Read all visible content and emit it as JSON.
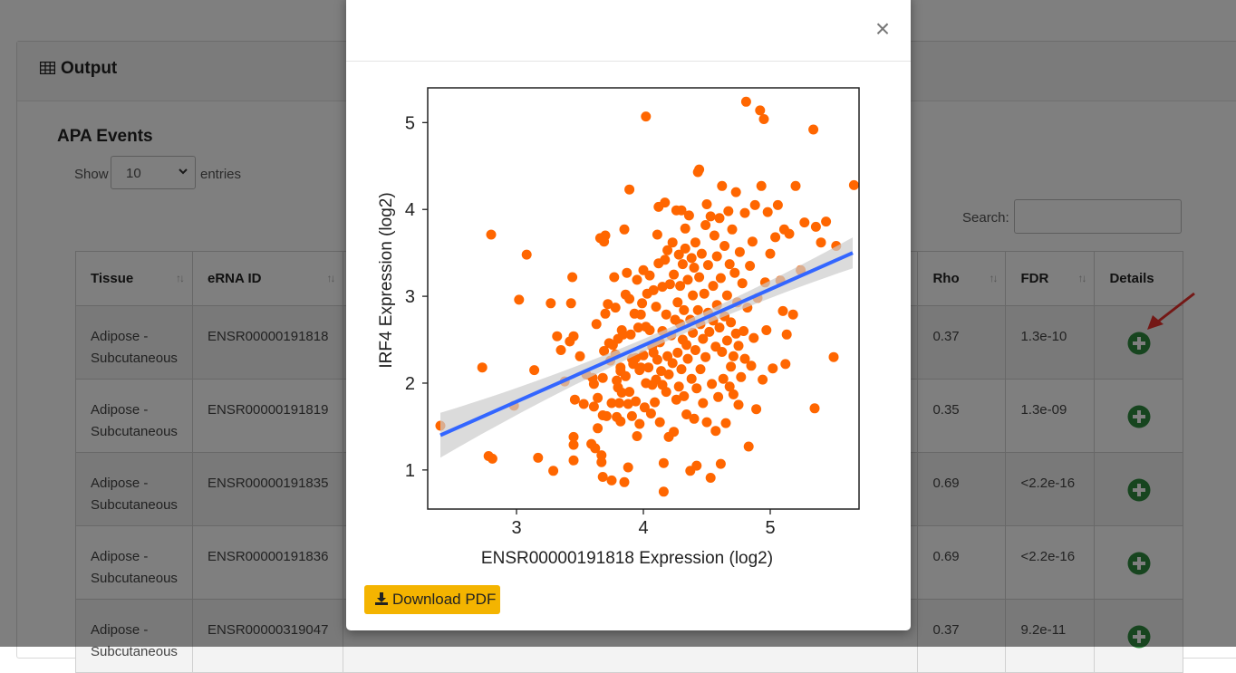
{
  "panel": {
    "title": "Output"
  },
  "section": {
    "title": "APA Events",
    "show_label": "Show",
    "entries_value": "10",
    "entries_label": "entries",
    "search_label": "Search:",
    "search_value": ""
  },
  "table": {
    "columns": {
      "tissue": "Tissue",
      "erna": "eRNA ID",
      "rho": "Rho",
      "fdr": "FDR",
      "details": "Details"
    },
    "rows": [
      {
        "tissue": "Adipose - Subcutaneous",
        "erna": "ENSR00000191818",
        "rho": "0.37",
        "fdr": "1.3e-10"
      },
      {
        "tissue": "Adipose - Subcutaneous",
        "erna": "ENSR00000191819",
        "rho": "0.35",
        "fdr": "1.3e-09"
      },
      {
        "tissue": "Adipose - Subcutaneous",
        "erna": "ENSR00000191835",
        "rho": "0.69",
        "fdr": "<2.2e-16"
      },
      {
        "tissue": "Adipose - Subcutaneous",
        "erna": "ENSR00000191836",
        "rho": "0.69",
        "fdr": "<2.2e-16"
      },
      {
        "tissue": "Adipose - Subcutaneous",
        "erna": "ENSR00000319047",
        "rho": "0.37",
        "fdr": "9.2e-11"
      }
    ]
  },
  "modal": {
    "close_label": "×",
    "download_label": "Download PDF"
  },
  "colors": {
    "point": "#ff6600",
    "fit_line": "#3366ff",
    "band": "#cccccc",
    "plus_green": "#2e8b3e",
    "arrow": "#e8302c",
    "download_bg": "#f4b400"
  },
  "chart_data": {
    "type": "scatter",
    "xlabel": "ENSR00000191818  Expression (log2)",
    "ylabel": "IRF4  Expression (log2)",
    "x_ticks": [
      3,
      4,
      5
    ],
    "y_ticks": [
      1,
      2,
      3,
      4,
      5
    ],
    "xlim": [
      2.3,
      5.7
    ],
    "ylim": [
      0.55,
      5.4
    ],
    "grid": false,
    "legend": "none",
    "fit_line": {
      "x": [
        2.4,
        5.65
      ],
      "y": [
        1.4,
        3.5
      ]
    },
    "series": [
      {
        "points": [
          [
            2.4,
            1.51
          ],
          [
            2.73,
            2.18
          ],
          [
            2.8,
            3.71
          ],
          [
            2.78,
            1.16
          ],
          [
            2.81,
            1.13
          ],
          [
            3.02,
            2.96
          ],
          [
            3.08,
            3.48
          ],
          [
            2.98,
            1.74
          ],
          [
            3.14,
            2.15
          ],
          [
            3.17,
            1.14
          ],
          [
            3.27,
            2.92
          ],
          [
            3.32,
            2.54
          ],
          [
            3.29,
            0.99
          ],
          [
            3.35,
            2.38
          ],
          [
            3.38,
            2.02
          ],
          [
            3.42,
            2.48
          ],
          [
            3.43,
            2.92
          ],
          [
            3.45,
            2.54
          ],
          [
            3.44,
            3.22
          ],
          [
            3.45,
            1.29
          ],
          [
            3.45,
            1.38
          ],
          [
            3.45,
            1.11
          ],
          [
            3.46,
            1.81
          ],
          [
            3.5,
            2.31
          ],
          [
            3.53,
            1.76
          ],
          [
            3.55,
            2.1
          ],
          [
            3.59,
            1.3
          ],
          [
            3.6,
            2.06
          ],
          [
            3.61,
            1.73
          ],
          [
            3.61,
            1.99
          ],
          [
            3.62,
            1.25
          ],
          [
            3.63,
            2.68
          ],
          [
            3.64,
            1.83
          ],
          [
            3.64,
            1.48
          ],
          [
            3.66,
            3.67
          ],
          [
            3.67,
            1.17
          ],
          [
            3.67,
            1.09
          ],
          [
            3.68,
            0.92
          ],
          [
            3.68,
            2.06
          ],
          [
            3.68,
            1.63
          ],
          [
            3.69,
            2.37
          ],
          [
            3.69,
            3.63
          ],
          [
            3.7,
            2.8
          ],
          [
            3.7,
            3.7
          ],
          [
            3.71,
            1.62
          ],
          [
            3.72,
            2.91
          ],
          [
            3.73,
            2.46
          ],
          [
            3.74,
            2.26
          ],
          [
            3.75,
            1.77
          ],
          [
            3.75,
            0.88
          ],
          [
            3.76,
            2.44
          ],
          [
            3.77,
            3.22
          ],
          [
            3.78,
            2.87
          ],
          [
            3.78,
            2.33
          ],
          [
            3.79,
            1.61
          ],
          [
            3.79,
            2.03
          ],
          [
            3.8,
            1.95
          ],
          [
            3.8,
            2.51
          ],
          [
            3.81,
            1.77
          ],
          [
            3.82,
            2.14
          ],
          [
            3.82,
            1.56
          ],
          [
            3.82,
            2.18
          ],
          [
            3.83,
            2.61
          ],
          [
            3.83,
            1.89
          ],
          [
            3.84,
            2.56
          ],
          [
            3.85,
            0.86
          ],
          [
            3.85,
            3.77
          ],
          [
            3.86,
            3.02
          ],
          [
            3.86,
            2.08
          ],
          [
            3.87,
            3.27
          ],
          [
            3.88,
            1.03
          ],
          [
            3.88,
            1.76
          ],
          [
            3.89,
            1.9
          ],
          [
            3.89,
            4.23
          ],
          [
            3.89,
            2.97
          ],
          [
            3.9,
            2.56
          ],
          [
            3.91,
            2.28
          ],
          [
            3.91,
            1.62
          ],
          [
            3.92,
            2.22
          ],
          [
            3.93,
            2.8
          ],
          [
            3.94,
            1.79
          ],
          [
            3.94,
            2.29
          ],
          [
            3.95,
            1.39
          ],
          [
            3.95,
            3.19
          ],
          [
            3.96,
            2.64
          ],
          [
            3.97,
            2.15
          ],
          [
            3.97,
            1.53
          ],
          [
            3.98,
            2.79
          ],
          [
            3.98,
            2.18
          ],
          [
            3.99,
            2.92
          ],
          [
            4.0,
            3.3
          ],
          [
            4.0,
            2.32
          ],
          [
            4.01,
            1.72
          ],
          [
            4.02,
            2.0
          ],
          [
            4.02,
            2.65
          ],
          [
            4.02,
            5.07
          ],
          [
            4.03,
            3.03
          ],
          [
            4.04,
            2.18
          ],
          [
            4.05,
            3.24
          ],
          [
            4.05,
            2.61
          ],
          [
            4.06,
            1.65
          ],
          [
            4.07,
            2.42
          ],
          [
            4.07,
            1.98
          ],
          [
            4.08,
            3.07
          ],
          [
            4.08,
            2.35
          ],
          [
            4.09,
            1.78
          ],
          [
            4.1,
            2.88
          ],
          [
            4.1,
            2.04
          ],
          [
            4.11,
            3.71
          ],
          [
            4.11,
            2.27
          ],
          [
            4.12,
            4.03
          ],
          [
            4.12,
            3.38
          ],
          [
            4.13,
            1.55
          ],
          [
            4.13,
            2.47
          ],
          [
            4.14,
            2.14
          ],
          [
            4.15,
            3.11
          ],
          [
            4.15,
            2.6
          ],
          [
            4.15,
            1.98
          ],
          [
            4.16,
            0.75
          ],
          [
            4.16,
            1.08
          ],
          [
            4.17,
            4.08
          ],
          [
            4.17,
            3.42
          ],
          [
            4.18,
            2.79
          ],
          [
            4.18,
            1.9
          ],
          [
            4.19,
            3.53
          ],
          [
            4.19,
            2.31
          ],
          [
            4.2,
            1.38
          ],
          [
            4.2,
            2.1
          ],
          [
            4.21,
            3.14
          ],
          [
            4.22,
            2.55
          ],
          [
            4.23,
            3.62
          ],
          [
            4.23,
            2.23
          ],
          [
            4.24,
            1.44
          ],
          [
            4.24,
            3.25
          ],
          [
            4.25,
            2.73
          ],
          [
            4.26,
            3.99
          ],
          [
            4.26,
            1.81
          ],
          [
            4.27,
            2.93
          ],
          [
            4.27,
            2.35
          ],
          [
            4.28,
            3.48
          ],
          [
            4.28,
            1.96
          ],
          [
            4.29,
            2.68
          ],
          [
            4.29,
            3.12
          ],
          [
            4.3,
            3.99
          ],
          [
            4.3,
            2.16
          ],
          [
            4.31,
            3.37
          ],
          [
            4.31,
            2.5
          ],
          [
            4.32,
            1.85
          ],
          [
            4.32,
            2.84
          ],
          [
            4.33,
            3.55
          ],
          [
            4.33,
            3.78
          ],
          [
            4.34,
            1.64
          ],
          [
            4.34,
            2.44
          ],
          [
            4.35,
            3.19
          ],
          [
            4.35,
            2.28
          ],
          [
            4.36,
            3.93
          ],
          [
            4.37,
            2.73
          ],
          [
            4.37,
            0.99
          ],
          [
            4.38,
            3.44
          ],
          [
            4.38,
            2.05
          ],
          [
            4.39,
            2.58
          ],
          [
            4.39,
            3.01
          ],
          [
            4.4,
            1.59
          ],
          [
            4.4,
            3.33
          ],
          [
            4.41,
            2.38
          ],
          [
            4.41,
            3.62
          ],
          [
            4.42,
            1.05
          ],
          [
            4.42,
            1.94
          ],
          [
            4.43,
            4.43
          ],
          [
            4.43,
            2.84
          ],
          [
            4.44,
            4.46
          ],
          [
            4.44,
            3.22
          ],
          [
            4.45,
            2.16
          ],
          [
            4.45,
            2.68
          ],
          [
            4.46,
            3.49
          ],
          [
            4.47,
            1.77
          ],
          [
            4.47,
            2.51
          ],
          [
            4.48,
            3.03
          ],
          [
            4.49,
            3.82
          ],
          [
            4.49,
            2.3
          ],
          [
            4.5,
            4.06
          ],
          [
            4.5,
            1.55
          ],
          [
            4.51,
            2.81
          ],
          [
            4.51,
            3.36
          ],
          [
            4.52,
            2.59
          ],
          [
            4.53,
            0.91
          ],
          [
            4.53,
            3.92
          ],
          [
            4.54,
            1.99
          ],
          [
            4.55,
            2.72
          ],
          [
            4.55,
            3.12
          ],
          [
            4.56,
            3.7
          ],
          [
            4.57,
            1.45
          ],
          [
            4.57,
            2.42
          ],
          [
            4.58,
            3.46
          ],
          [
            4.58,
            2.9
          ],
          [
            4.59,
            1.84
          ],
          [
            4.6,
            2.64
          ],
          [
            4.6,
            3.9
          ],
          [
            4.61,
            1.07
          ],
          [
            4.61,
            3.21
          ],
          [
            4.62,
            2.36
          ],
          [
            4.62,
            4.27
          ],
          [
            4.63,
            2.05
          ],
          [
            4.64,
            3.58
          ],
          [
            4.64,
            2.77
          ],
          [
            4.65,
            1.54
          ],
          [
            4.66,
            3.01
          ],
          [
            4.66,
            2.49
          ],
          [
            4.67,
            3.98
          ],
          [
            4.68,
            1.96
          ],
          [
            4.68,
            3.37
          ],
          [
            4.69,
            2.7
          ],
          [
            4.69,
            2.19
          ],
          [
            4.7,
            3.77
          ],
          [
            4.71,
            2.31
          ],
          [
            4.71,
            1.87
          ],
          [
            4.72,
            3.27
          ],
          [
            4.73,
            2.57
          ],
          [
            4.73,
            4.2
          ],
          [
            4.74,
            2.93
          ],
          [
            4.75,
            1.75
          ],
          [
            4.75,
            2.43
          ],
          [
            4.76,
            3.51
          ],
          [
            4.77,
            2.07
          ],
          [
            4.78,
            3.15
          ],
          [
            4.79,
            2.6
          ],
          [
            4.8,
            3.96
          ],
          [
            4.8,
            2.28
          ],
          [
            4.81,
            5.24
          ],
          [
            4.82,
            2.87
          ],
          [
            4.83,
            1.27
          ],
          [
            4.84,
            3.35
          ],
          [
            4.85,
            2.2
          ],
          [
            4.86,
            3.63
          ],
          [
            4.87,
            2.52
          ],
          [
            4.88,
            4.05
          ],
          [
            4.89,
            1.7
          ],
          [
            4.9,
            2.98
          ],
          [
            4.92,
            5.14
          ],
          [
            4.93,
            4.27
          ],
          [
            4.94,
            2.04
          ],
          [
            4.95,
            5.04
          ],
          [
            4.96,
            3.16
          ],
          [
            4.97,
            2.61
          ],
          [
            4.98,
            3.97
          ],
          [
            5.0,
            3.49
          ],
          [
            5.02,
            2.17
          ],
          [
            5.04,
            3.68
          ],
          [
            5.06,
            4.05
          ],
          [
            5.08,
            3.18
          ],
          [
            5.1,
            2.83
          ],
          [
            5.11,
            3.77
          ],
          [
            5.12,
            2.22
          ],
          [
            5.13,
            2.56
          ],
          [
            5.15,
            3.72
          ],
          [
            5.18,
            2.79
          ],
          [
            5.2,
            4.27
          ],
          [
            5.24,
            3.3
          ],
          [
            5.27,
            3.85
          ],
          [
            5.34,
            4.92
          ],
          [
            5.35,
            1.71
          ],
          [
            5.36,
            3.8
          ],
          [
            5.4,
            3.62
          ],
          [
            5.44,
            3.86
          ],
          [
            5.5,
            2.3
          ],
          [
            5.52,
            3.58
          ],
          [
            5.66,
            4.28
          ]
        ]
      }
    ]
  }
}
